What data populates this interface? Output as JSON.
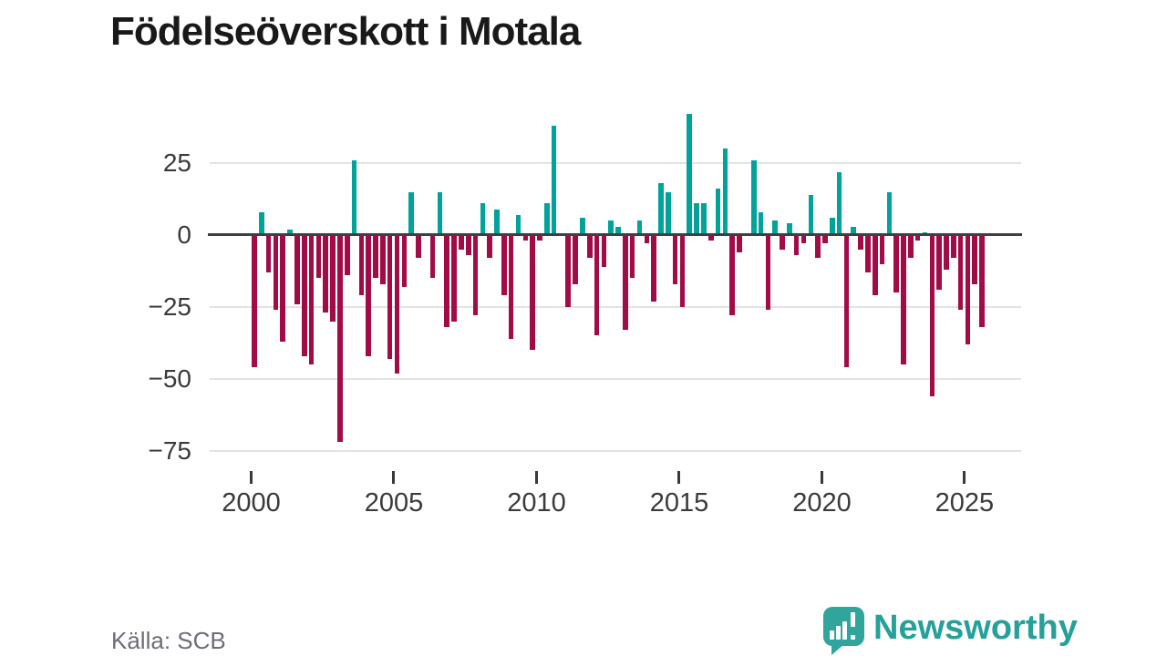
{
  "header": {
    "title": "Födelseöverskott i Motala"
  },
  "footer": {
    "source": "Källa: SCB",
    "brand": "Newsworthy",
    "logo_icon": "speech-bubble-bar-chart-icon"
  },
  "colors": {
    "positive_bar": "#00a39a",
    "negative_bar": "#a10c47",
    "zero_line": "#3f3f3f",
    "gridline": "#e3e3e3",
    "axis_text": "#3a3a3a",
    "title_text": "#191919",
    "source_text": "#6d6d77",
    "brand_teal": "#2fa59c"
  },
  "chart_data": {
    "type": "bar",
    "title": "Födelseöverskott i Motala",
    "frequency": "quarterly",
    "x_start": "2000 Q1",
    "x_end": "2025 Q3",
    "ylim": [
      -80,
      47
    ],
    "grid": true,
    "y_ticks": [
      {
        "label": "25",
        "value": 25
      },
      {
        "label": "0",
        "value": 0
      },
      {
        "label": "−25",
        "value": -25
      },
      {
        "label": "−50",
        "value": -50
      },
      {
        "label": "−75",
        "value": -75
      }
    ],
    "x_ticks": [
      {
        "label": "2000",
        "year": 2000
      },
      {
        "label": "2005",
        "year": 2005
      },
      {
        "label": "2010",
        "year": 2010
      },
      {
        "label": "2015",
        "year": 2015
      },
      {
        "label": "2020",
        "year": 2020
      },
      {
        "label": "2025",
        "year": 2025
      }
    ],
    "values": [
      -46,
      8,
      -13,
      -26,
      -37,
      2,
      -24,
      -42,
      -45,
      -15,
      -27,
      -30,
      -72,
      -14,
      26,
      -21,
      -42,
      -15,
      -17,
      -43,
      -48,
      -18,
      15,
      -8,
      0,
      -15,
      15,
      -32,
      -30,
      -5,
      -7,
      -28,
      11,
      -8,
      9,
      -21,
      -36,
      7,
      -2,
      -40,
      -2,
      11,
      38,
      0,
      -25,
      -17,
      6,
      -8,
      -35,
      -11,
      5,
      3,
      -33,
      -15,
      5,
      -3,
      -23,
      18,
      15,
      -17,
      -25,
      42,
      11,
      11,
      -2,
      16,
      30,
      -28,
      -6,
      0,
      26,
      8,
      -26,
      5,
      -5,
      4,
      -7,
      -3,
      14,
      -8,
      -3,
      6,
      22,
      -46,
      3,
      -5,
      -13,
      -21,
      -10,
      15,
      -20,
      -45,
      -8,
      -2,
      1,
      -56,
      -19,
      -12,
      -8,
      -26,
      -38,
      -17,
      -32
    ]
  }
}
